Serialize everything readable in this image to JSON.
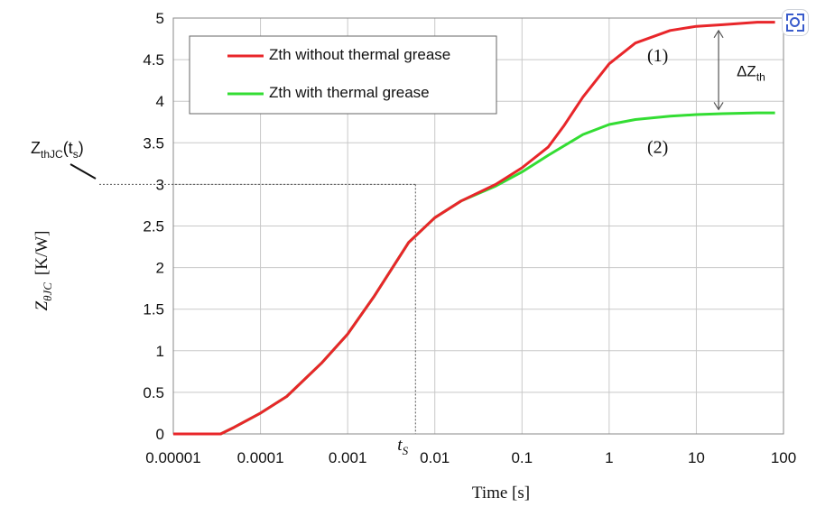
{
  "chart_data": {
    "type": "line",
    "title": "",
    "xlabel": "Time  [s]",
    "ylabel_main": "Z",
    "ylabel_sub": "θJC",
    "ylabel_unit": "[K/W]",
    "xscale": "log",
    "xlim": [
      1e-05,
      100
    ],
    "ylim": [
      0,
      5
    ],
    "grid": true,
    "legend_position": "top-left",
    "x_ticks": [
      "0.00001",
      "0.0001",
      "0.001",
      "0.01",
      "0.1",
      "1",
      "10",
      "100"
    ],
    "y_ticks": [
      "0",
      "0.5",
      "1",
      "1.5",
      "2",
      "2.5",
      "3",
      "3.5",
      "4",
      "4.5",
      "5"
    ],
    "series": [
      {
        "name": "Zth without thermal grease",
        "color": "#e8262a",
        "points": [
          [
            1e-05,
            0
          ],
          [
            3.5e-05,
            0
          ],
          [
            5e-05,
            0.08
          ],
          [
            0.0001,
            0.25
          ],
          [
            0.0002,
            0.45
          ],
          [
            0.0005,
            0.85
          ],
          [
            0.001,
            1.2
          ],
          [
            0.002,
            1.65
          ],
          [
            0.005,
            2.3
          ],
          [
            0.01,
            2.6
          ],
          [
            0.02,
            2.8
          ],
          [
            0.05,
            3.0
          ],
          [
            0.1,
            3.2
          ],
          [
            0.2,
            3.45
          ],
          [
            0.3,
            3.7
          ],
          [
            0.5,
            4.05
          ],
          [
            1,
            4.45
          ],
          [
            2,
            4.7
          ],
          [
            5,
            4.85
          ],
          [
            10,
            4.9
          ],
          [
            20,
            4.92
          ],
          [
            50,
            4.95
          ],
          [
            80,
            4.95
          ]
        ]
      },
      {
        "name": "Zth with thermal grease",
        "color": "#33dd33",
        "points": [
          [
            1e-05,
            0
          ],
          [
            3.5e-05,
            0
          ],
          [
            5e-05,
            0.08
          ],
          [
            0.0001,
            0.25
          ],
          [
            0.0002,
            0.45
          ],
          [
            0.0005,
            0.85
          ],
          [
            0.001,
            1.2
          ],
          [
            0.002,
            1.65
          ],
          [
            0.005,
            2.3
          ],
          [
            0.01,
            2.6
          ],
          [
            0.02,
            2.8
          ],
          [
            0.05,
            2.98
          ],
          [
            0.1,
            3.15
          ],
          [
            0.2,
            3.35
          ],
          [
            0.5,
            3.6
          ],
          [
            1,
            3.72
          ],
          [
            2,
            3.78
          ],
          [
            5,
            3.82
          ],
          [
            10,
            3.84
          ],
          [
            20,
            3.85
          ],
          [
            50,
            3.86
          ],
          [
            80,
            3.86
          ]
        ]
      }
    ],
    "annotations": {
      "ts_label": "t",
      "ts_sub": "S",
      "ts_value": 0.006,
      "zth_at_ts": 3.0,
      "zthjc_label": "Z",
      "zthjc_sub": "thJC",
      "zthjc_arg_open": "(t",
      "zthjc_arg_sub": "s",
      "zthjc_arg_close": ")",
      "curve1_label": "(1)",
      "curve2_label": "(2)",
      "delta_label": "ΔZ",
      "delta_sub": "th",
      "delta_x": 18
    }
  },
  "ui": {
    "lens_icon": "visual-search-icon"
  }
}
